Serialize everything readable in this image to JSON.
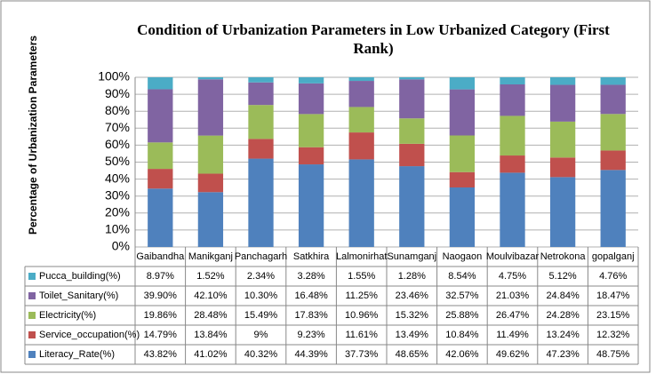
{
  "chart_data": {
    "type": "bar",
    "stacking": "percent",
    "title": "Condition of Urbanization Parameters in Low Urbanized  Category (First Rank)",
    "y_label": "Percentage of Urbanization Parameters",
    "categories": [
      "Gaibandha",
      "Manikganj",
      "Panchagarh",
      "Satkhira",
      "Lalmonirhat",
      "Sunamganj",
      "Naogaon",
      "Moulvibazar",
      "Netrokona",
      "gopalganj"
    ],
    "ylim": [
      0,
      100
    ],
    "yticks": [
      {
        "value": 0,
        "label": "0%"
      },
      {
        "value": 10,
        "label": "10%"
      },
      {
        "value": 20,
        "label": "20%"
      },
      {
        "value": 30,
        "label": "30%"
      },
      {
        "value": 40,
        "label": "40%"
      },
      {
        "value": 50,
        "label": "50%"
      },
      {
        "value": 60,
        "label": "60%"
      },
      {
        "value": 70,
        "label": "70%"
      },
      {
        "value": 80,
        "label": "80%"
      },
      {
        "value": 90,
        "label": "90%"
      },
      {
        "value": 100,
        "label": "100%"
      }
    ],
    "grid": true,
    "series": [
      {
        "name": "Literacy_Rate(%)",
        "color": "#4f81bd",
        "values": [
          43.82,
          41.02,
          40.32,
          44.39,
          37.73,
          48.65,
          42.06,
          49.62,
          47.23,
          48.75
        ],
        "value_labels": [
          "43.82%",
          "41.02%",
          "40.32%",
          "44.39%",
          "37.73%",
          "48.65%",
          "42.06%",
          "49.62%",
          "47.23%",
          "48.75%"
        ]
      },
      {
        "name": "Service_occupation(%)",
        "color": "#c0504d",
        "values": [
          14.79,
          13.84,
          9,
          9.23,
          11.61,
          13.49,
          10.84,
          11.49,
          13.24,
          12.32
        ],
        "value_labels": [
          "14.79%",
          "13.84%",
          "9%",
          "9.23%",
          "11.61%",
          "13.49%",
          "10.84%",
          "11.49%",
          "13.24%",
          "12.32%"
        ]
      },
      {
        "name": "Electricity(%)",
        "color": "#9bbb59",
        "values": [
          19.86,
          28.48,
          15.49,
          17.83,
          10.96,
          15.32,
          25.88,
          26.47,
          24.28,
          23.15
        ],
        "value_labels": [
          "19.86%",
          "28.48%",
          "15.49%",
          "17.83%",
          "10.96%",
          "15.32%",
          "25.88%",
          "26.47%",
          "24.28%",
          "23.15%"
        ]
      },
      {
        "name": "Toilet_Sanitary(%)",
        "color": "#8064a2",
        "values": [
          39.9,
          42.1,
          10.3,
          16.48,
          11.25,
          23.46,
          32.57,
          21.03,
          24.84,
          18.47
        ],
        "value_labels": [
          "39.90%",
          "42.10%",
          "10.30%",
          "16.48%",
          "11.25%",
          "23.46%",
          "32.57%",
          "21.03%",
          "24.84%",
          "18.47%"
        ]
      },
      {
        "name": "Pucca_building(%)",
        "color": "#4bacc6",
        "values": [
          8.97,
          1.52,
          2.34,
          3.28,
          1.55,
          1.28,
          8.54,
          4.75,
          5.12,
          4.76
        ],
        "value_labels": [
          "8.97%",
          "1.52%",
          "2.34%",
          "3.28%",
          "1.55%",
          "1.28%",
          "8.54%",
          "4.75%",
          "5.12%",
          "4.76%"
        ]
      }
    ]
  }
}
